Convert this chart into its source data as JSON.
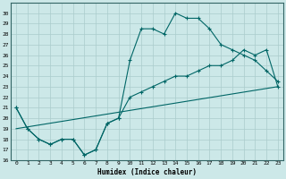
{
  "xlabel": "Humidex (Indice chaleur)",
  "ylabel": "",
  "bg_color": "#cce8e8",
  "grid_color": "#aacccc",
  "line_color": "#006666",
  "xlim": [
    -0.5,
    23.5
  ],
  "ylim": [
    16,
    31
  ],
  "xticks": [
    0,
    1,
    2,
    3,
    4,
    5,
    6,
    7,
    8,
    9,
    10,
    11,
    12,
    13,
    14,
    15,
    16,
    17,
    18,
    19,
    20,
    21,
    22,
    23
  ],
  "yticks": [
    16,
    17,
    18,
    19,
    20,
    21,
    22,
    23,
    24,
    25,
    26,
    27,
    28,
    29,
    30
  ],
  "line1_x": [
    0,
    1,
    2,
    3,
    4,
    5,
    6,
    7,
    8,
    9,
    10,
    11,
    12,
    13,
    14,
    15,
    16,
    17,
    18,
    19,
    20,
    21,
    22,
    23
  ],
  "line1_y": [
    21,
    19,
    18,
    17.5,
    18,
    18,
    16.5,
    17,
    19.5,
    20,
    25.5,
    28.5,
    28.5,
    28,
    30,
    29.5,
    29.5,
    28.5,
    27,
    26.5,
    26,
    25.5,
    24.5,
    23.5
  ],
  "line2_x": [
    0,
    1,
    2,
    3,
    4,
    5,
    6,
    7,
    8,
    9,
    10,
    11,
    12,
    13,
    14,
    15,
    16,
    17,
    18,
    19,
    20,
    21,
    22,
    23
  ],
  "line2_y": [
    21,
    19,
    18,
    17.5,
    18,
    18,
    16.5,
    17,
    19.5,
    20,
    22,
    22.5,
    23,
    23.5,
    24,
    24,
    24.5,
    25,
    25,
    25.5,
    26.5,
    26,
    26.5,
    23
  ],
  "line3_x": [
    0,
    23
  ],
  "line3_y": [
    19,
    23
  ]
}
